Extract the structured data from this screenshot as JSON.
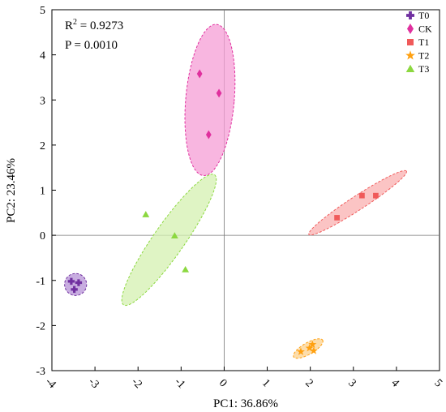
{
  "chart_data": {
    "type": "scatter",
    "xlabel": "PC1: 36.86%",
    "ylabel": "PC2: 23.46%",
    "xlim": [
      -4,
      5
    ],
    "ylim": [
      -3,
      5
    ],
    "xticks": [
      -4,
      -3,
      -2,
      -1,
      0,
      1,
      2,
      3,
      4,
      5
    ],
    "yticks": [
      -3,
      -2,
      -1,
      0,
      1,
      2,
      3,
      4,
      5
    ],
    "xtick_labels": [
      "-4",
      "-3",
      "-2",
      "-1",
      "0",
      "1",
      "2",
      "3",
      "4",
      "5"
    ],
    "ytick_labels": [
      "-3",
      "-2",
      "-1",
      "0",
      "1",
      "2",
      "3",
      "4",
      "5"
    ],
    "reference_lines": {
      "x": 0,
      "y": 0
    },
    "annotations": {
      "r2_prefix": "R",
      "r2_sup": "2",
      "r2_value": " = 0.9273",
      "p_text": "P = 0.0010"
    },
    "legend_position": "top-right",
    "series": [
      {
        "name": "T0",
        "marker": "plus",
        "color": "#7030a0",
        "fill": "#b591d6",
        "points": [
          [
            -3.55,
            -1.02
          ],
          [
            -3.38,
            -1.05
          ],
          [
            -3.48,
            -1.2
          ]
        ],
        "ellipse": {
          "cx": -3.45,
          "cy": -1.09,
          "rx": 0.25,
          "ry": 0.25,
          "angle": 0
        }
      },
      {
        "name": "CK",
        "marker": "diamond",
        "color": "#e0309e",
        "fill": "#f59ed6",
        "points": [
          [
            -0.57,
            3.58
          ],
          [
            -0.12,
            3.15
          ],
          [
            -0.36,
            2.23
          ]
        ],
        "ellipse": {
          "cx": -0.33,
          "cy": 3.0,
          "rx": 0.55,
          "ry": 1.72,
          "angle": -5
        }
      },
      {
        "name": "T1",
        "marker": "square",
        "color": "#f05a5a",
        "fill": "#f9b0b0",
        "points": [
          [
            2.62,
            0.39
          ],
          [
            3.2,
            0.88
          ],
          [
            3.52,
            0.88
          ]
        ],
        "ellipse": {
          "cx": 3.1,
          "cy": 0.72,
          "rx": 1.32,
          "ry": 0.16,
          "angle": 33
        }
      },
      {
        "name": "T2",
        "marker": "star",
        "color": "#ffa010",
        "fill": "#fcd28e",
        "points": [
          [
            1.78,
            -2.58
          ],
          [
            1.98,
            -2.5
          ],
          [
            2.05,
            -2.42
          ],
          [
            2.08,
            -2.56
          ]
        ],
        "ellipse": {
          "cx": 1.95,
          "cy": -2.51,
          "rx": 0.38,
          "ry": 0.13,
          "angle": 30
        }
      },
      {
        "name": "T3",
        "marker": "triangle",
        "color": "#8cd840",
        "fill": "#d4f0b0",
        "points": [
          [
            -1.82,
            0.46
          ],
          [
            -1.15,
            -0.01
          ],
          [
            -0.9,
            -0.76
          ]
        ],
        "ellipse": {
          "cx": -1.28,
          "cy": -0.1,
          "rx": 1.8,
          "ry": 0.35,
          "angle": 55
        }
      }
    ]
  }
}
